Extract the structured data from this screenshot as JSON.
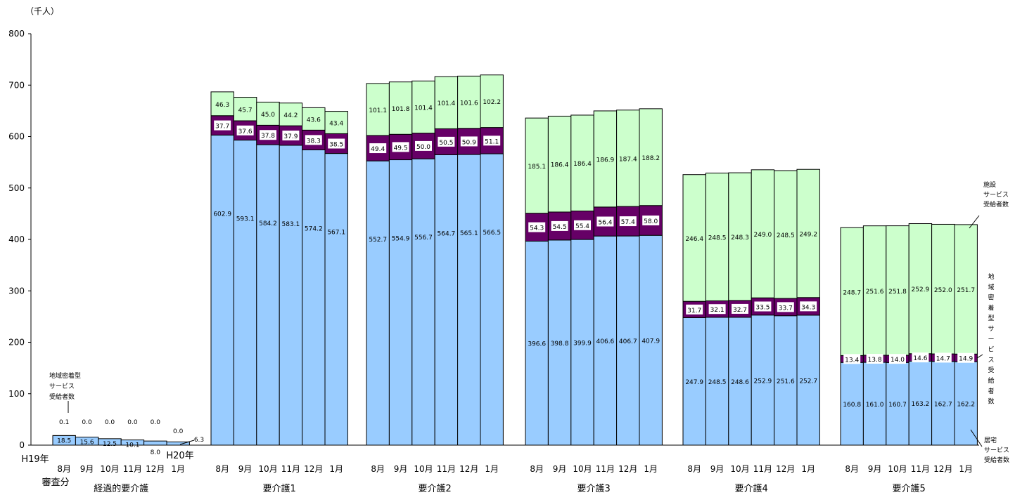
{
  "chart_data": {
    "type": "bar",
    "stacked": true,
    "y_unit_label": "（千人）",
    "ylim": [
      0,
      800
    ],
    "yticks": [
      0,
      100,
      200,
      300,
      400,
      500,
      600,
      700,
      800
    ],
    "colors": {
      "home": "#99CCFF",
      "community": "#660066",
      "facility": "#CCFFCC",
      "outline": "#000000",
      "label_box": "#FFFFFF"
    },
    "series_names": {
      "home": "居宅サービス受給者数",
      "community": "地域密着型サービス受給者数",
      "facility": "施設サービス受給者数"
    },
    "legend": {
      "facility": [
        "施設",
        "サービス",
        "受給者数"
      ],
      "community": [
        "地",
        "域",
        "密",
        "着",
        "型",
        "サ",
        "ー",
        "ビ",
        "ス",
        "受",
        "給",
        "者",
        "数"
      ],
      "home": [
        "居宅",
        "サービス",
        "受給者数"
      ]
    },
    "groups": [
      {
        "name": "経過的要介護",
        "months": [
          "8月",
          "9月",
          "10月",
          "11月",
          "12月",
          "1月"
        ],
        "home": [
          18.5,
          15.6,
          12.5,
          10.1,
          8.0,
          6.3
        ],
        "community": [
          0.1,
          0.0,
          0.0,
          0.0,
          0.0,
          0.0
        ],
        "facility": [
          null,
          null,
          null,
          null,
          null,
          null
        ],
        "home_labels": [
          "18.5",
          "15.6",
          "12.5",
          "10.1",
          "8.0",
          "6.3"
        ],
        "community_labels": [
          "0.1",
          "0.0",
          "0.0",
          "0.0",
          "0.0",
          "0.0"
        ],
        "facility_labels": [
          "",
          "",
          "",
          "",
          "",
          ""
        ],
        "annotation": [
          "地域密着型",
          "サービス",
          "受給者数"
        ]
      },
      {
        "name": "要介護1",
        "months": [
          "8月",
          "9月",
          "10月",
          "11月",
          "12月",
          "1月"
        ],
        "home": [
          602.9,
          593.1,
          584.2,
          583.1,
          574.2,
          567.1
        ],
        "community": [
          37.7,
          37.6,
          37.8,
          37.9,
          38.3,
          38.5
        ],
        "facility": [
          46.3,
          45.7,
          45.0,
          44.2,
          43.6,
          43.4
        ],
        "home_labels": [
          "602.9",
          "593.1",
          "584.2",
          "583.1",
          "574.2",
          "567.1"
        ],
        "community_labels": [
          "37.7",
          "37.6",
          "37.8",
          "37.9",
          "38.3",
          "38.5"
        ],
        "facility_labels": [
          "46.3",
          "45.7",
          "45.0",
          "44.2",
          "43.6",
          "43.4"
        ]
      },
      {
        "name": "要介護2",
        "months": [
          "8月",
          "9月",
          "10月",
          "11月",
          "12月",
          "1月"
        ],
        "home": [
          552.7,
          554.9,
          556.7,
          564.7,
          565.1,
          566.5
        ],
        "community": [
          49.4,
          49.5,
          50.0,
          50.5,
          50.9,
          51.1
        ],
        "facility": [
          101.1,
          101.8,
          101.4,
          101.4,
          101.6,
          102.2
        ],
        "home_labels": [
          "552.7",
          "554.9",
          "556.7",
          "564.7",
          "565.1",
          "566.5"
        ],
        "community_labels": [
          "49.4",
          "49.5",
          "50.0",
          "50.5",
          "50.9",
          "51.1"
        ],
        "facility_labels": [
          "101.1",
          "101.8",
          "101.4",
          "101.4",
          "101.6",
          "102.2"
        ]
      },
      {
        "name": "要介護3",
        "months": [
          "8月",
          "9月",
          "10月",
          "11月",
          "12月",
          "1月"
        ],
        "home": [
          396.6,
          398.8,
          399.9,
          406.6,
          406.7,
          407.9
        ],
        "community": [
          54.3,
          54.5,
          55.4,
          56.4,
          57.4,
          58.0
        ],
        "facility": [
          185.1,
          186.4,
          186.4,
          186.9,
          187.4,
          188.2
        ],
        "home_labels": [
          "396.6",
          "398.8",
          "399.9",
          "406.6",
          "406.7",
          "407.9"
        ],
        "community_labels": [
          "54.3",
          "54.5",
          "55.4",
          "56.4",
          "57.4",
          "58.0"
        ],
        "facility_labels": [
          "185.1",
          "186.4",
          "186.4",
          "186.9",
          "187.4",
          "188.2"
        ]
      },
      {
        "name": "要介護4",
        "months": [
          "8月",
          "9月",
          "10月",
          "11月",
          "12月",
          "1月"
        ],
        "home": [
          247.9,
          248.5,
          248.6,
          252.9,
          251.6,
          252.7
        ],
        "community": [
          31.7,
          32.1,
          32.7,
          33.5,
          33.7,
          34.3
        ],
        "facility": [
          246.4,
          248.5,
          248.3,
          249.0,
          248.5,
          249.2
        ],
        "home_labels": [
          "247.9",
          "248.5",
          "248.6",
          "252.9",
          "251.6",
          "252.7"
        ],
        "community_labels": [
          "31.7",
          "32.1",
          "32.7",
          "33.5",
          "33.7",
          "34.3"
        ],
        "facility_labels": [
          "246.4",
          "248.5",
          "248.3",
          "249.0",
          "248.5",
          "249.2"
        ]
      },
      {
        "name": "要介護5",
        "months": [
          "8月",
          "9月",
          "10月",
          "11月",
          "12月",
          "1月"
        ],
        "home": [
          160.8,
          161.0,
          160.7,
          163.2,
          162.7,
          162.2
        ],
        "community": [
          13.4,
          13.8,
          14.0,
          14.6,
          14.7,
          14.9
        ],
        "facility": [
          248.7,
          251.6,
          251.8,
          252.9,
          252.0,
          251.7
        ],
        "home_labels": [
          "160.8",
          "161.0",
          "160.7",
          "163.2",
          "162.7",
          "162.2"
        ],
        "community_labels": [
          "13.4",
          "13.8",
          "14.0",
          "14.6",
          "14.7",
          "14.9"
        ],
        "facility_labels": [
          "248.7",
          "251.6",
          "251.8",
          "252.9",
          "252.0",
          "251.7"
        ]
      }
    ],
    "period_labels": {
      "start_year": "H19年",
      "start_note": "審査分",
      "mid_year": "H20年"
    }
  }
}
